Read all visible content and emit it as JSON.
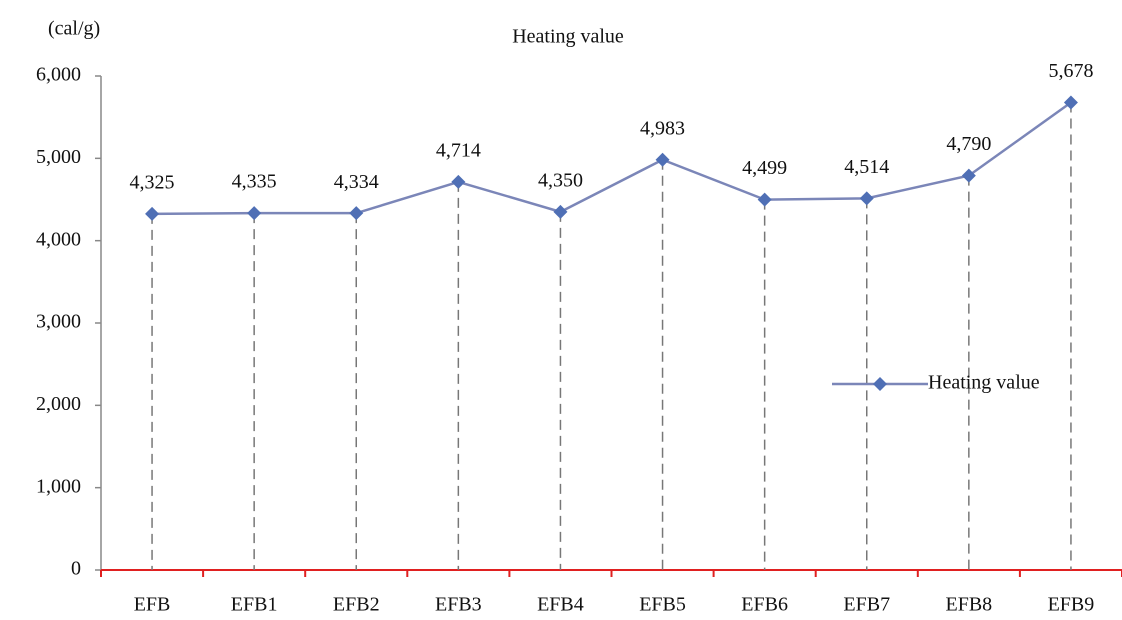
{
  "chart_data": {
    "type": "line",
    "title": "Heating value",
    "y_axis_label": "(cal/g)",
    "categories": [
      "EFB",
      "EFB1",
      "EFB2",
      "EFB3",
      "EFB4",
      "EFB5",
      "EFB6",
      "EFB7",
      "EFB8",
      "EFB9"
    ],
    "series": [
      {
        "name": "Heating value",
        "color": "#7b86b8",
        "marker_color": "#4f6fb5",
        "values": [
          4325,
          4335,
          4334,
          4714,
          4350,
          4983,
          4499,
          4514,
          4790,
          5678
        ],
        "value_labels": [
          "4,325",
          "4,335",
          "4,334",
          "4,714",
          "4,350",
          "4,983",
          "4,499",
          "4,514",
          "4,790",
          "5,678"
        ]
      }
    ],
    "ylim": [
      0,
      6000
    ],
    "yticks": [
      0,
      {
        "value": 1000,
        "label": "1,000"
      },
      {
        "value": 2000,
        "label": "2,000"
      },
      {
        "value": 3000,
        "label": "3,000"
      },
      {
        "value": 4000,
        "label": "4,000"
      },
      {
        "value": 5000,
        "label": "5,000"
      },
      {
        "value": 6000,
        "label": "6,000"
      }
    ],
    "drop_lines": true,
    "legend": "right"
  }
}
